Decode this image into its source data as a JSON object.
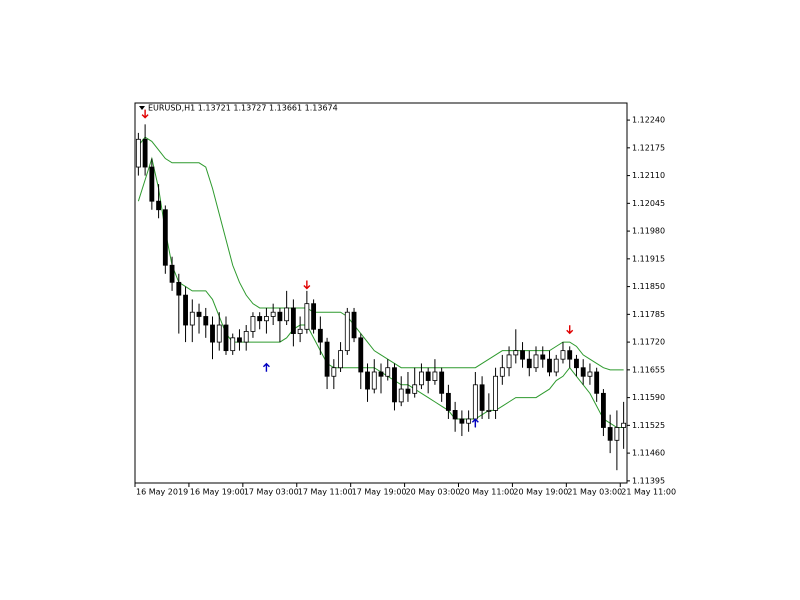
{
  "chart_data": {
    "type": "candlestick",
    "title": "EURUSD,H1  1.13721 1.13727 1.13661 1.13674",
    "categories": [
      "16 May 2019",
      null,
      null,
      null,
      null,
      null,
      null,
      null,
      "16 May 19:00",
      null,
      null,
      null,
      null,
      null,
      null,
      null,
      "17 May 03:00",
      null,
      null,
      null,
      null,
      null,
      null,
      null,
      "17 May 11:00",
      null,
      null,
      null,
      null,
      null,
      null,
      null,
      "17 May 19:00",
      null,
      null,
      null,
      null,
      null,
      null,
      null,
      "20 May 03:00",
      null,
      null,
      null,
      null,
      null,
      null,
      null,
      "20 May 11:00",
      null,
      null,
      null,
      null,
      null,
      null,
      null,
      "20 May 19:00",
      null,
      null,
      null,
      null,
      null,
      null,
      null,
      "21 May 03:00",
      null,
      null,
      null,
      null,
      null,
      null,
      null,
      "21 May 11:00"
    ],
    "candles": [
      [
        1.1213,
        1.1221,
        1.1211,
        1.12195
      ],
      [
        1.12195,
        1.1223,
        1.1211,
        1.1213
      ],
      [
        1.1213,
        1.1215,
        1.1203,
        1.1205
      ],
      [
        1.1205,
        1.1209,
        1.1201,
        1.1203
      ],
      [
        1.1203,
        1.1204,
        1.1188,
        1.119
      ],
      [
        1.119,
        1.1192,
        1.1184,
        1.1186
      ],
      [
        1.1186,
        1.1188,
        1.1174,
        1.1183
      ],
      [
        1.1183,
        1.1185,
        1.1172,
        1.1176
      ],
      [
        1.1176,
        1.1182,
        1.1172,
        1.1179
      ],
      [
        1.1179,
        1.1181,
        1.1174,
        1.1178
      ],
      [
        1.1178,
        1.118,
        1.1173,
        1.1176
      ],
      [
        1.1176,
        1.1178,
        1.1168,
        1.1172
      ],
      [
        1.1172,
        1.1179,
        1.117,
        1.1176
      ],
      [
        1.1176,
        1.1178,
        1.1169,
        1.117
      ],
      [
        1.117,
        1.1174,
        1.1169,
        1.1173
      ],
      [
        1.1173,
        1.1175,
        1.117,
        1.1172
      ],
      [
        1.1172,
        1.1176,
        1.117,
        1.11745
      ],
      [
        1.11745,
        1.1179,
        1.1173,
        1.1178
      ],
      [
        1.1178,
        1.1179,
        1.1175,
        1.1177
      ],
      [
        1.1177,
        1.118,
        1.1174,
        1.1178
      ],
      [
        1.1178,
        1.1181,
        1.1176,
        1.1179
      ],
      [
        1.1179,
        1.118,
        1.1172,
        1.1177
      ],
      [
        1.1177,
        1.1184,
        1.1176,
        1.118
      ],
      [
        1.118,
        1.1182,
        1.1171,
        1.1174
      ],
      [
        1.1174,
        1.1178,
        1.1172,
        1.1175
      ],
      [
        1.1175,
        1.1184,
        1.1174,
        1.1181
      ],
      [
        1.1181,
        1.1182,
        1.1174,
        1.1175
      ],
      [
        1.1175,
        1.1178,
        1.1169,
        1.1172
      ],
      [
        1.1172,
        1.1173,
        1.1161,
        1.1164
      ],
      [
        1.1164,
        1.1168,
        1.1161,
        1.1166
      ],
      [
        1.1166,
        1.1172,
        1.1165,
        1.117
      ],
      [
        1.117,
        1.118,
        1.1169,
        1.1179
      ],
      [
        1.1179,
        1.118,
        1.1172,
        1.1173
      ],
      [
        1.1173,
        1.1174,
        1.1161,
        1.1165
      ],
      [
        1.1165,
        1.1167,
        1.1158,
        1.1161
      ],
      [
        1.1161,
        1.1168,
        1.116,
        1.1165
      ],
      [
        1.1165,
        1.1167,
        1.116,
        1.1164
      ],
      [
        1.1164,
        1.1168,
        1.1163,
        1.1166
      ],
      [
        1.1166,
        1.1167,
        1.1156,
        1.1158
      ],
      [
        1.1158,
        1.1164,
        1.1157,
        1.1161
      ],
      [
        1.1161,
        1.1165,
        1.1158,
        1.116
      ],
      [
        1.116,
        1.1166,
        1.1159,
        1.1162
      ],
      [
        1.1162,
        1.1167,
        1.1161,
        1.1165
      ],
      [
        1.1165,
        1.1166,
        1.116,
        1.1163
      ],
      [
        1.1163,
        1.1168,
        1.1162,
        1.1165
      ],
      [
        1.1165,
        1.1166,
        1.1158,
        1.116
      ],
      [
        1.116,
        1.1162,
        1.1154,
        1.1156
      ],
      [
        1.1156,
        1.1158,
        1.1151,
        1.1154
      ],
      [
        1.1154,
        1.1156,
        1.115,
        1.1153
      ],
      [
        1.1153,
        1.1156,
        1.1151,
        1.1154
      ],
      [
        1.1154,
        1.1165,
        1.1152,
        1.1162
      ],
      [
        1.1162,
        1.1164,
        1.1154,
        1.1156
      ],
      [
        1.1156,
        1.116,
        1.1154,
        1.1156
      ],
      [
        1.1156,
        1.1166,
        1.1154,
        1.1164
      ],
      [
        1.1164,
        1.1169,
        1.1162,
        1.1166
      ],
      [
        1.1166,
        1.1171,
        1.1164,
        1.1169
      ],
      [
        1.1169,
        1.1175,
        1.1167,
        1.117
      ],
      [
        1.117,
        1.1172,
        1.1166,
        1.1168
      ],
      [
        1.1168,
        1.117,
        1.1164,
        1.1166
      ],
      [
        1.1166,
        1.1171,
        1.1165,
        1.1169
      ],
      [
        1.1169,
        1.1171,
        1.1166,
        1.1168
      ],
      [
        1.1168,
        1.117,
        1.1164,
        1.1165
      ],
      [
        1.1165,
        1.1169,
        1.1164,
        1.1168
      ],
      [
        1.1168,
        1.1172,
        1.1167,
        1.117
      ],
      [
        1.117,
        1.1171,
        1.1166,
        1.1168
      ],
      [
        1.1168,
        1.1169,
        1.1164,
        1.1166
      ],
      [
        1.1166,
        1.1168,
        1.1162,
        1.1164
      ],
      [
        1.1164,
        1.1167,
        1.1162,
        1.1165
      ],
      [
        1.1165,
        1.1166,
        1.1158,
        1.116
      ],
      [
        1.116,
        1.1161,
        1.115,
        1.1152
      ],
      [
        1.1152,
        1.1155,
        1.1146,
        1.1149
      ],
      [
        1.1149,
        1.1156,
        1.1142,
        1.1152
      ],
      [
        1.1152,
        1.1158,
        1.1147,
        1.1153
      ]
    ],
    "up_color": "#ffffff",
    "down_color": "#000000",
    "series": [
      {
        "color": "#2e9a2e",
        "values": [
          1.1218,
          1.122,
          1.1219,
          1.1217,
          1.1215,
          1.1214,
          1.1214,
          1.1214,
          1.1214,
          1.1214,
          1.1213,
          1.1208,
          1.1202,
          1.1196,
          1.119,
          1.1186,
          1.1183,
          1.1181,
          1.118,
          1.118,
          1.118,
          1.118,
          1.118,
          1.118,
          1.118,
          1.118,
          1.1179,
          1.1179,
          1.1179,
          1.1179,
          1.1179,
          1.1178,
          1.1176,
          1.1174,
          1.1172,
          1.117,
          1.1169,
          1.1168,
          1.1167,
          1.1166,
          1.1166,
          1.1166,
          1.1166,
          1.1166,
          1.1166,
          1.1166,
          1.1166,
          1.1166,
          1.1166,
          1.1166,
          1.1166,
          1.1167,
          1.1168,
          1.1169,
          1.117,
          1.117,
          1.117,
          1.117,
          1.117,
          1.117,
          1.117,
          1.117,
          1.1171,
          1.1172,
          1.1172,
          1.1171,
          1.1169,
          1.1168,
          1.1167,
          1.1166,
          1.11655,
          1.11655,
          1.11655
        ]
      },
      {
        "color": "#2e9a2e",
        "values": [
          1.1205,
          1.121,
          1.1215,
          1.1208,
          1.1198,
          1.119,
          1.1186,
          1.1185,
          1.1184,
          1.1184,
          1.1184,
          1.1182,
          1.1178,
          1.1174,
          1.1172,
          1.1172,
          1.1172,
          1.1172,
          1.1172,
          1.1172,
          1.1172,
          1.1172,
          1.1173,
          1.1175,
          1.1176,
          1.1176,
          1.1173,
          1.117,
          1.1167,
          1.1166,
          1.1166,
          1.1166,
          1.1166,
          1.1166,
          1.1166,
          1.1166,
          1.1165,
          1.1164,
          1.1163,
          1.1162,
          1.1162,
          1.1161,
          1.116,
          1.1159,
          1.1158,
          1.1157,
          1.1156,
          1.1154,
          1.1154,
          1.1154,
          1.1154,
          1.1155,
          1.1156,
          1.1156,
          1.1157,
          1.1158,
          1.1159,
          1.1159,
          1.1159,
          1.1159,
          1.116,
          1.1161,
          1.1163,
          1.1164,
          1.1166,
          1.1164,
          1.1162,
          1.116,
          1.1157,
          1.1154,
          1.1153,
          1.1152,
          1.1152
        ]
      }
    ],
    "signals": [
      {
        "index": 1,
        "direction": "sell",
        "price": 1.12255,
        "color": "#e00000"
      },
      {
        "index": 19,
        "direction": "buy",
        "price": 1.1166,
        "color": "#0000c0"
      },
      {
        "index": 25,
        "direction": "sell",
        "price": 1.11855,
        "color": "#e00000"
      },
      {
        "index": 50,
        "direction": "buy",
        "price": 1.1153,
        "color": "#0000c0"
      },
      {
        "index": 64,
        "direction": "sell",
        "price": 1.1175,
        "color": "#e00000"
      }
    ],
    "ylim": [
      1.1139,
      1.1228
    ],
    "yticks": [
      {
        "value": 1.1224,
        "label": "1.12240"
      },
      {
        "value": 1.12175,
        "label": "1.12175"
      },
      {
        "value": 1.1211,
        "label": "1.12110"
      },
      {
        "value": 1.12045,
        "label": "1.12045"
      },
      {
        "value": 1.1198,
        "label": "1.11980"
      },
      {
        "value": 1.11915,
        "label": "1.11915"
      },
      {
        "value": 1.1185,
        "label": "1.11850"
      },
      {
        "value": 1.11785,
        "label": "1.11785"
      },
      {
        "value": 1.1172,
        "label": "1.11720"
      },
      {
        "value": 1.11655,
        "label": "1.11655"
      },
      {
        "value": 1.1159,
        "label": "1.11590"
      },
      {
        "value": 1.11525,
        "label": "1.11525"
      },
      {
        "value": 1.1146,
        "label": "1.11460"
      },
      {
        "value": 1.11395,
        "label": "1.11395"
      }
    ],
    "grid": false
  }
}
